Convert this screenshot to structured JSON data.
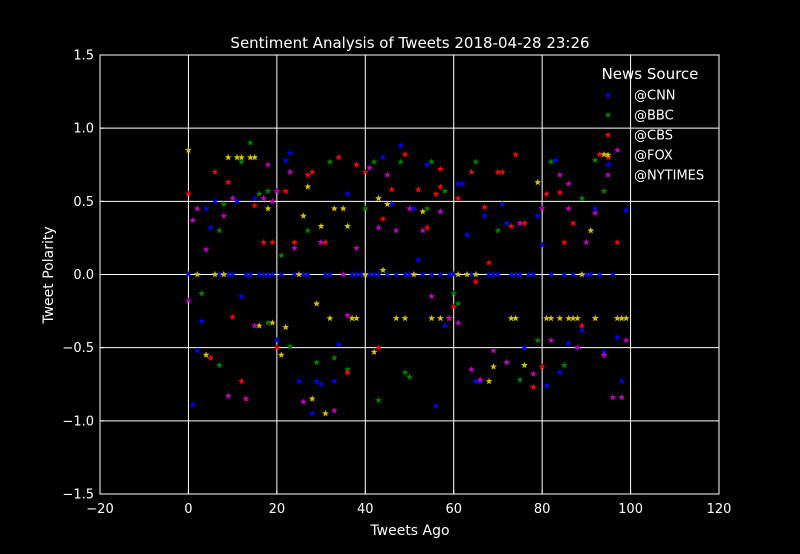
{
  "chart_data": {
    "type": "scatter",
    "title": "Sentiment Analysis of Tweets 2018-04-28 23:26",
    "xlabel": "Tweets Ago",
    "ylabel": "Tweet Polarity",
    "xlim": [
      -20,
      120
    ],
    "ylim": [
      -1.5,
      1.5
    ],
    "xticks": [
      -20,
      0,
      20,
      40,
      60,
      80,
      100,
      120
    ],
    "yticks": [
      -1.5,
      -1.0,
      -0.5,
      0.0,
      0.5,
      1.0,
      1.5
    ],
    "xtick_labels": [
      "−20",
      "0",
      "20",
      "40",
      "60",
      "80",
      "100",
      "120"
    ],
    "ytick_labels": [
      "−1.5",
      "−1.0",
      "−0.5",
      "0.0",
      "0.5",
      "1.0",
      "1.5"
    ],
    "grid": true,
    "marker": "star",
    "background_color": "#000000",
    "legend": {
      "title": "News Source",
      "placement": "top-right",
      "entries": [
        "@CNN",
        "@BBC",
        "@CBS",
        "@FOX",
        "@NYTIMES"
      ]
    },
    "series": [
      {
        "name": "@CNN",
        "color": "#0000ff",
        "points": [
          [
            0,
            0
          ],
          [
            1,
            -0.89
          ],
          [
            2,
            -0.52
          ],
          [
            3,
            -0.32
          ],
          [
            4,
            0.45
          ],
          [
            5,
            0.32
          ],
          [
            6,
            0.5
          ],
          [
            7,
            0
          ],
          [
            8,
            0
          ],
          [
            9,
            0
          ],
          [
            10,
            0
          ],
          [
            11,
            0.5
          ],
          [
            12,
            -0.15
          ],
          [
            13,
            0
          ],
          [
            14,
            0
          ],
          [
            15,
            0.52
          ],
          [
            16,
            0
          ],
          [
            17,
            0
          ],
          [
            18,
            0
          ],
          [
            19,
            0
          ],
          [
            20,
            -0.45
          ],
          [
            21,
            0
          ],
          [
            22,
            0.78
          ],
          [
            23,
            0.83
          ],
          [
            24,
            0
          ],
          [
            25,
            -0.73
          ],
          [
            26,
            0
          ],
          [
            27,
            0
          ],
          [
            28,
            -0.95
          ],
          [
            29,
            -0.73
          ],
          [
            30,
            -0.75
          ],
          [
            31,
            0
          ],
          [
            32,
            0
          ],
          [
            33,
            -0.73
          ],
          [
            34,
            -0.48
          ],
          [
            35,
            0
          ],
          [
            36,
            0.55
          ],
          [
            37,
            0
          ],
          [
            38,
            0
          ],
          [
            39,
            0
          ],
          [
            40,
            0
          ],
          [
            41,
            0
          ],
          [
            42,
            0
          ],
          [
            43,
            0
          ],
          [
            44,
            0.8
          ],
          [
            45,
            0
          ],
          [
            46,
            0.48
          ],
          [
            47,
            0
          ],
          [
            48,
            0.88
          ],
          [
            49,
            0
          ],
          [
            50,
            0
          ],
          [
            51,
            0.45
          ],
          [
            52,
            0.1
          ],
          [
            53,
            0
          ],
          [
            54,
            0.75
          ],
          [
            55,
            0
          ],
          [
            56,
            -0.9
          ],
          [
            57,
            0
          ],
          [
            58,
            -0.35
          ],
          [
            59,
            0
          ],
          [
            60,
            0
          ],
          [
            61,
            0.62
          ],
          [
            62,
            0.62
          ],
          [
            63,
            0.27
          ],
          [
            64,
            0
          ],
          [
            65,
            -0.73
          ],
          [
            66,
            -0.73
          ],
          [
            67,
            0.4
          ],
          [
            68,
            0
          ],
          [
            69,
            0
          ],
          [
            70,
            0
          ],
          [
            71,
            0.48
          ],
          [
            72,
            0.35
          ],
          [
            73,
            0
          ],
          [
            74,
            0
          ],
          [
            75,
            0
          ],
          [
            76,
            -0.5
          ],
          [
            77,
            0
          ],
          [
            78,
            0
          ],
          [
            79,
            0.4
          ],
          [
            80,
            0.2
          ],
          [
            81,
            -0.76
          ],
          [
            82,
            0
          ],
          [
            83,
            0.78
          ],
          [
            84,
            -0.67
          ],
          [
            85,
            0
          ],
          [
            86,
            -0.47
          ],
          [
            87,
            0
          ],
          [
            88,
            -0.5
          ],
          [
            89,
            -0.38
          ],
          [
            90,
            0
          ],
          [
            91,
            0
          ],
          [
            92,
            0.45
          ],
          [
            93,
            0
          ],
          [
            94,
            -0.53
          ],
          [
            95,
            0.75
          ],
          [
            96,
            0
          ],
          [
            97,
            -0.43
          ],
          [
            98,
            -0.73
          ],
          [
            99,
            0.44
          ]
        ]
      },
      {
        "name": "@BBC",
        "color": "#008000",
        "points": [
          [
            3,
            -0.13
          ],
          [
            7,
            0.3
          ],
          [
            8,
            0.48
          ],
          [
            12,
            0.77
          ],
          [
            14,
            0.9
          ],
          [
            16,
            0.55
          ],
          [
            18,
            0.57
          ],
          [
            21,
            0.13
          ],
          [
            23,
            -0.49
          ],
          [
            27,
            0.3
          ],
          [
            29,
            -0.6
          ],
          [
            32,
            0.77
          ],
          [
            33,
            -0.57
          ],
          [
            36,
            -0.65
          ],
          [
            42,
            0.77
          ],
          [
            43,
            -0.86
          ],
          [
            48,
            0.77
          ],
          [
            49,
            -0.67
          ],
          [
            50,
            -0.7
          ],
          [
            54,
            0.45
          ],
          [
            55,
            0.77
          ],
          [
            58,
            0.57
          ],
          [
            60,
            -0.13
          ],
          [
            61,
            -0.2
          ],
          [
            65,
            0.77
          ],
          [
            70,
            0.3
          ],
          [
            72,
            -0.6
          ],
          [
            75,
            -0.72
          ],
          [
            79,
            -0.45
          ],
          [
            82,
            0.77
          ],
          [
            85,
            -0.62
          ],
          [
            89,
            0.52
          ],
          [
            92,
            0.78
          ],
          [
            94,
            0.57
          ],
          [
            7,
            -0.62
          ],
          [
            18,
            -0.33
          ],
          [
            40,
            0.45
          ]
        ]
      },
      {
        "name": "@CBS",
        "color": "#ff0000",
        "points": [
          [
            0,
            0.55
          ],
          [
            5,
            -0.57
          ],
          [
            6,
            0.7
          ],
          [
            9,
            0.63
          ],
          [
            10,
            -0.29
          ],
          [
            12,
            -0.73
          ],
          [
            13,
            -0.85
          ],
          [
            15,
            0.47
          ],
          [
            17,
            0.22
          ],
          [
            19,
            0.22
          ],
          [
            20,
            -0.5
          ],
          [
            22,
            0.57
          ],
          [
            24,
            0.22
          ],
          [
            27,
            0.68
          ],
          [
            28,
            0.7
          ],
          [
            30,
            0.22
          ],
          [
            31,
            0.22
          ],
          [
            34,
            0.8
          ],
          [
            36,
            -0.67
          ],
          [
            38,
            0.75
          ],
          [
            40,
            0.7
          ],
          [
            43,
            -0.5
          ],
          [
            44,
            0.38
          ],
          [
            46,
            0.58
          ],
          [
            49,
            0.82
          ],
          [
            52,
            0.58
          ],
          [
            54,
            0.32
          ],
          [
            56,
            0.55
          ],
          [
            57,
            0.72
          ],
          [
            60,
            -0.22
          ],
          [
            61,
            0.52
          ],
          [
            64,
            0.7
          ],
          [
            67,
            0.46
          ],
          [
            68,
            0.08
          ],
          [
            70,
            0.7
          ],
          [
            71,
            0.7
          ],
          [
            73,
            0.33
          ],
          [
            74,
            0.82
          ],
          [
            76,
            0.35
          ],
          [
            78,
            -0.77
          ],
          [
            80,
            -0.63
          ],
          [
            81,
            0.55
          ],
          [
            84,
            0.56
          ],
          [
            85,
            0.22
          ],
          [
            87,
            0.35
          ],
          [
            89,
            -0.35
          ],
          [
            92,
            -0.3
          ],
          [
            93,
            0.82
          ],
          [
            95,
            0.8
          ],
          [
            97,
            0.22
          ],
          [
            57,
            0.6
          ],
          [
            65,
            -0.05
          ]
        ]
      },
      {
        "name": "@FOX",
        "color": "#d4c200",
        "points": [
          [
            0,
            0.85
          ],
          [
            2,
            0
          ],
          [
            4,
            -0.55
          ],
          [
            6,
            0
          ],
          [
            8,
            0
          ],
          [
            9,
            0.8
          ],
          [
            11,
            0.8
          ],
          [
            12,
            0.8
          ],
          [
            14,
            0.8
          ],
          [
            15,
            0.8
          ],
          [
            16,
            -0.35
          ],
          [
            18,
            0.45
          ],
          [
            19,
            -0.33
          ],
          [
            21,
            -0.55
          ],
          [
            22,
            -0.36
          ],
          [
            25,
            0
          ],
          [
            26,
            0.4
          ],
          [
            27,
            0.6
          ],
          [
            28,
            -0.85
          ],
          [
            29,
            -0.2
          ],
          [
            30,
            0.33
          ],
          [
            31,
            -0.95
          ],
          [
            32,
            -0.3
          ],
          [
            33,
            0.45
          ],
          [
            35,
            0.45
          ],
          [
            36,
            0.33
          ],
          [
            37,
            -0.3
          ],
          [
            38,
            -0.3
          ],
          [
            40,
            0
          ],
          [
            42,
            -0.53
          ],
          [
            43,
            0.52
          ],
          [
            44,
            0.03
          ],
          [
            45,
            0.48
          ],
          [
            47,
            -0.3
          ],
          [
            49,
            -0.3
          ],
          [
            51,
            0
          ],
          [
            53,
            0.43
          ],
          [
            55,
            -0.3
          ],
          [
            57,
            -0.3
          ],
          [
            59,
            -0.3
          ],
          [
            61,
            0
          ],
          [
            63,
            0
          ],
          [
            65,
            0
          ],
          [
            68,
            -0.73
          ],
          [
            69,
            -0.63
          ],
          [
            73,
            -0.3
          ],
          [
            74,
            -0.3
          ],
          [
            76,
            -0.62
          ],
          [
            79,
            0.63
          ],
          [
            81,
            -0.3
          ],
          [
            82,
            -0.3
          ],
          [
            84,
            -0.3
          ],
          [
            86,
            -0.3
          ],
          [
            87,
            -0.3
          ],
          [
            88,
            -0.3
          ],
          [
            91,
            0.3
          ],
          [
            92,
            -0.3
          ],
          [
            94,
            0.82
          ],
          [
            97,
            -0.3
          ],
          [
            98,
            -0.3
          ],
          [
            99,
            -0.3
          ],
          [
            89,
            0
          ]
        ]
      },
      {
        "name": "@NYTIMES",
        "color": "#c000c0",
        "points": [
          [
            0,
            -0.18
          ],
          [
            1,
            0.37
          ],
          [
            2,
            0.45
          ],
          [
            4,
            0.17
          ],
          [
            8,
            0.4
          ],
          [
            9,
            -0.83
          ],
          [
            10,
            0.52
          ],
          [
            13,
            -0.85
          ],
          [
            15,
            -0.35
          ],
          [
            17,
            0.52
          ],
          [
            18,
            0.75
          ],
          [
            19,
            0.5
          ],
          [
            20,
            0.57
          ],
          [
            23,
            0.7
          ],
          [
            24,
            0.18
          ],
          [
            26,
            -0.87
          ],
          [
            30,
            0.22
          ],
          [
            33,
            -0.93
          ],
          [
            35,
            0
          ],
          [
            36,
            -0.28
          ],
          [
            38,
            0.18
          ],
          [
            41,
            0.73
          ],
          [
            43,
            0.32
          ],
          [
            45,
            0.68
          ],
          [
            47,
            0.3
          ],
          [
            50,
            0.45
          ],
          [
            53,
            0.3
          ],
          [
            55,
            -0.15
          ],
          [
            57,
            0.43
          ],
          [
            59,
            -0.3
          ],
          [
            61,
            -0.33
          ],
          [
            64,
            -0.65
          ],
          [
            66,
            -0.72
          ],
          [
            69,
            -0.52
          ],
          [
            72,
            -0.6
          ],
          [
            75,
            0.35
          ],
          [
            78,
            -0.68
          ],
          [
            80,
            0.45
          ],
          [
            82,
            -0.45
          ],
          [
            84,
            0.68
          ],
          [
            86,
            0.62
          ],
          [
            88,
            -0.5
          ],
          [
            90,
            0.22
          ],
          [
            92,
            0.42
          ],
          [
            94,
            -0.55
          ],
          [
            96,
            -0.84
          ],
          [
            98,
            -0.84
          ],
          [
            99,
            -0.45
          ],
          [
            97,
            0.85
          ],
          [
            86,
            0.45
          ]
        ]
      }
    ]
  }
}
